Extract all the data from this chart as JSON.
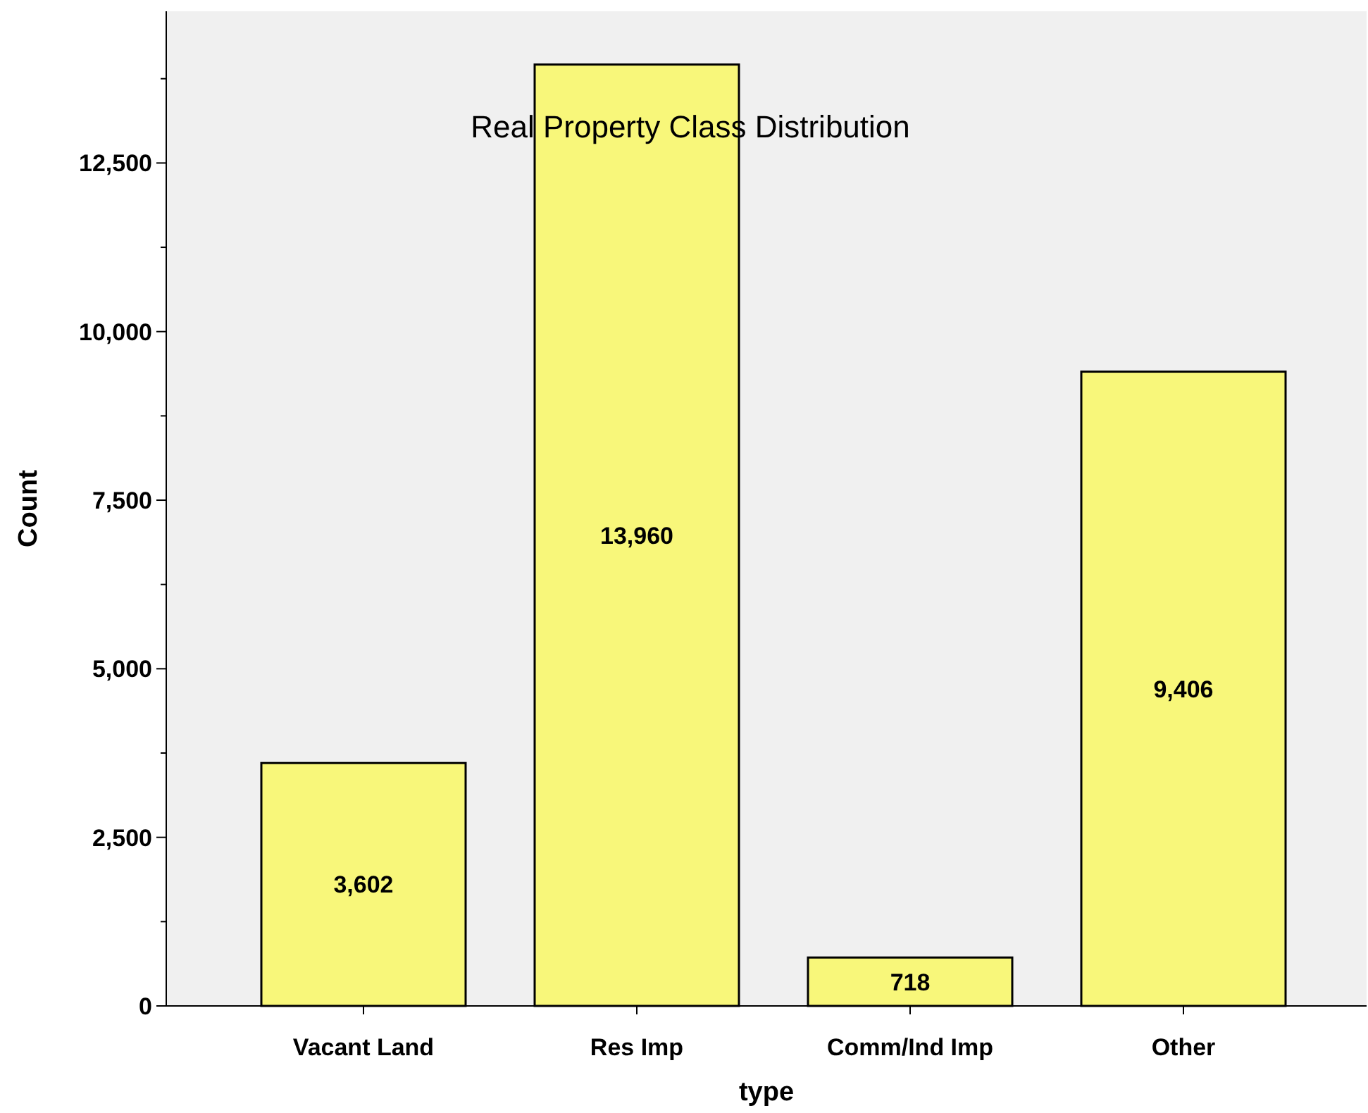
{
  "chart_data": {
    "type": "bar",
    "title": "Real Property Class Distribution",
    "xlabel": "type",
    "ylabel": "Count",
    "categories": [
      "Vacant Land",
      "Res Imp",
      "Comm/Ind Imp",
      "Other"
    ],
    "values": [
      3602,
      13960,
      718,
      9406
    ],
    "color": "#f8f77a",
    "value_labels": [
      "3,602",
      "13,960",
      "718",
      "9,406"
    ],
    "ylim": [
      0,
      14750
    ],
    "yticks": [
      {
        "value": 0,
        "label": "0"
      },
      {
        "value": 1250,
        "label": null
      },
      {
        "value": 2500,
        "label": "2,500"
      },
      {
        "value": 3750,
        "label": null
      },
      {
        "value": 5000,
        "label": "5,000"
      },
      {
        "value": 6250,
        "label": null
      },
      {
        "value": 7500,
        "label": "7,500"
      },
      {
        "value": 8750,
        "label": null
      },
      {
        "value": 10000,
        "label": "10,000"
      },
      {
        "value": 11250,
        "label": null
      },
      {
        "value": 12500,
        "label": "12,500"
      },
      {
        "value": 13750,
        "label": null
      }
    ],
    "grid": false
  }
}
